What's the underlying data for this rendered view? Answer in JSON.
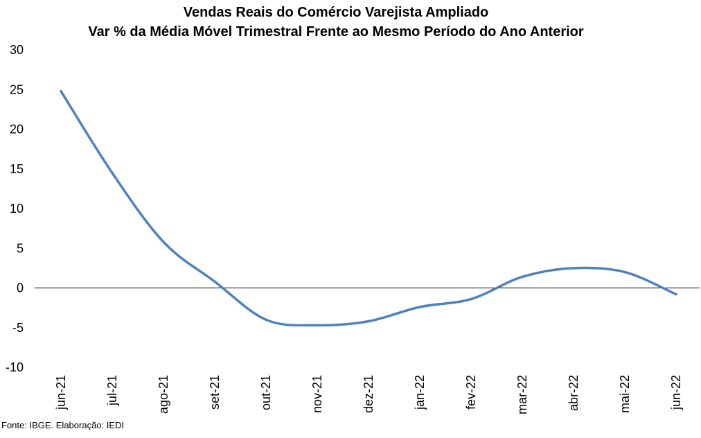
{
  "chart_data": {
    "type": "line",
    "title": "Vendas Reais do Comércio Varejista Ampliado",
    "subtitle": "Var % da Média Móvel Trimestral Frente ao Mesmo Período do Ano Anterior",
    "xlabel": "",
    "ylabel": "",
    "categories": [
      "jun-21",
      "jul-21",
      "ago-21",
      "set-21",
      "out-21",
      "nov-21",
      "dez-21",
      "jan-22",
      "fev-22",
      "mar-22",
      "abr-22",
      "mai-22",
      "jun-22"
    ],
    "series": [
      {
        "values": [
          24.8,
          14.5,
          5.8,
          0.8,
          -4.0,
          -4.7,
          -4.2,
          -2.4,
          -1.4,
          1.4,
          2.5,
          2.0,
          -0.8
        ]
      }
    ],
    "ylim": [
      -10,
      30
    ],
    "yticks": [
      30,
      25,
      20,
      15,
      10,
      5,
      0,
      -5,
      -10
    ],
    "grid": false,
    "line_color": "#4F81BD",
    "zero_line_color": "#000000"
  },
  "source": "Fonte: IBGE. Elaboração: IEDI"
}
